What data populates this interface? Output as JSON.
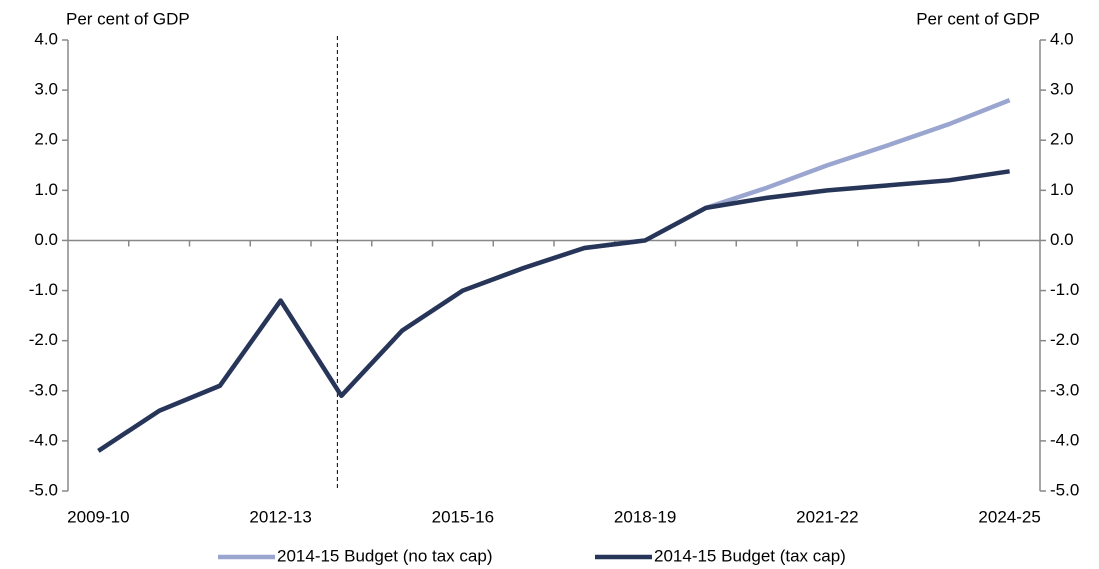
{
  "chart_data": {
    "type": "line",
    "y_label": "Per cent of GDP",
    "y2_label": "Per cent of GDP",
    "categories": [
      "2009-10",
      null,
      null,
      "2012-13",
      null,
      null,
      "2015-16",
      null,
      null,
      "2018-19",
      null,
      null,
      "2021-22",
      null,
      null,
      "2024-25"
    ],
    "series": [
      {
        "name": "2014-15 Budget (no tax cap)",
        "color": "#9aa6cf",
        "values": [
          -4.2,
          -3.4,
          -2.9,
          -1.2,
          -3.1,
          -1.8,
          -1.0,
          -0.55,
          -0.15,
          0.0,
          0.65,
          1.05,
          1.5,
          1.9,
          2.32,
          2.8
        ]
      },
      {
        "name": "2014-15 Budget (tax cap)",
        "color": "#273558",
        "values": [
          -4.2,
          -3.4,
          -2.9,
          -1.2,
          -3.1,
          -1.8,
          -1.0,
          -0.55,
          -0.15,
          0.0,
          0.65,
          0.85,
          1.0,
          1.1,
          1.2,
          1.38
        ]
      }
    ],
    "ylim": [
      -5,
      4
    ],
    "yticks": [
      {
        "value": 4,
        "label": "4.0"
      },
      {
        "value": 3,
        "label": "3.0"
      },
      {
        "value": 2,
        "label": "2.0"
      },
      {
        "value": 1,
        "label": "1.0"
      },
      {
        "value": 0,
        "label": "0.0"
      },
      {
        "value": -1,
        "label": "-1.0"
      },
      {
        "value": -2,
        "label": "-2.0"
      },
      {
        "value": -3,
        "label": "-3.0"
      },
      {
        "value": -4,
        "label": "-4.0"
      },
      {
        "value": -5,
        "label": "-5.0"
      }
    ],
    "y2lim": [
      -5,
      4
    ],
    "y2ticks": [
      {
        "value": 4,
        "label": "4.0"
      },
      {
        "value": 3,
        "label": "3.0"
      },
      {
        "value": 2,
        "label": "2.0"
      },
      {
        "value": 1,
        "label": "1.0"
      },
      {
        "value": 0,
        "label": "0.0"
      },
      {
        "value": -1,
        "label": "-1.0"
      },
      {
        "value": -2,
        "label": "-2.0"
      },
      {
        "value": -3,
        "label": "-3.0"
      },
      {
        "value": -4,
        "label": "-4.0"
      },
      {
        "value": -5,
        "label": "-5.0"
      }
    ],
    "legend": "bottom"
  }
}
